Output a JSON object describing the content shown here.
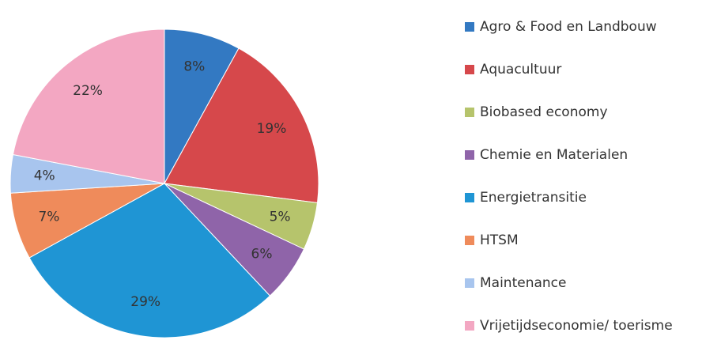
{
  "chart_data": {
    "type": "pie",
    "categories": [
      "Agro & Food en Landbouw",
      "Aquacultuur",
      "Biobased economy",
      "Chemie en Materialen",
      "Energietransitie",
      "HTSM",
      "Maintenance",
      "Vrijetijdseconomie/ toerisme"
    ],
    "values": [
      8,
      19,
      5,
      6,
      29,
      7,
      4,
      22
    ],
    "value_labels": [
      "8%",
      "19%",
      "5%",
      "6%",
      "29%",
      "7%",
      "4%",
      "22%"
    ],
    "colors": [
      "#3379c2",
      "#d6484b",
      "#b6c46c",
      "#8f64a9",
      "#1f95d4",
      "#ef8b5b",
      "#a8c5ee",
      "#f3a7c2"
    ],
    "legend": "right"
  }
}
